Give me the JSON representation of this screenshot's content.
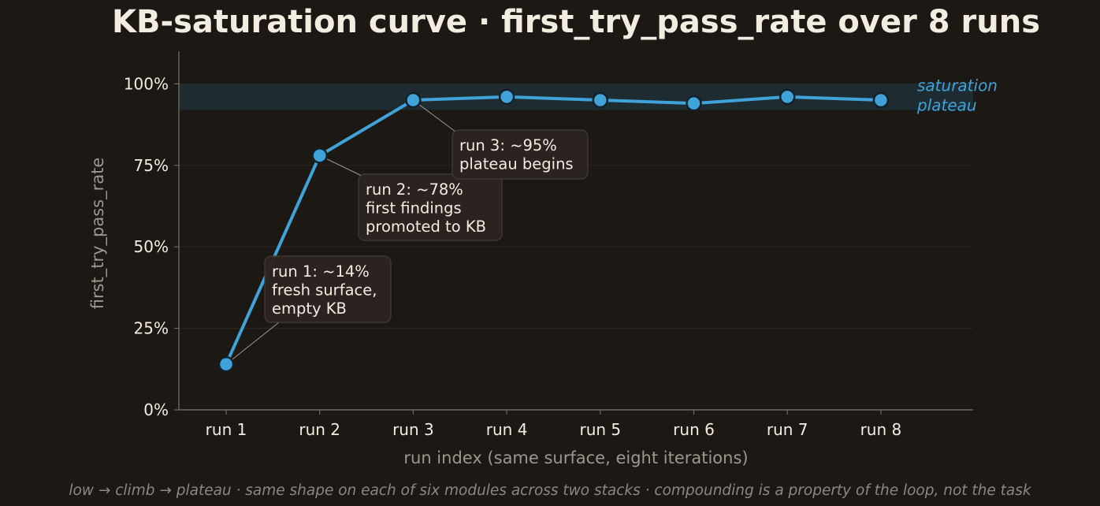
{
  "chart_data": {
    "type": "line",
    "title": "KB-saturation curve · first_try_pass_rate over 8 runs",
    "xlabel": "run index (same surface, eight iterations)",
    "ylabel": "first_try_pass_rate",
    "categories": [
      "run 1",
      "run 2",
      "run 3",
      "run 4",
      "run 5",
      "run 6",
      "run 7",
      "run 8"
    ],
    "series": [
      {
        "values": [
          14,
          78,
          95,
          96,
          95,
          94,
          96,
          95
        ]
      }
    ],
    "ylim": [
      0,
      110
    ],
    "y_ticks": [
      0,
      25,
      50,
      75,
      100
    ],
    "y_tick_labels": [
      "0%",
      "25%",
      "50%",
      "75%",
      "100%"
    ],
    "grid": "horizontal",
    "band": {
      "from": 92,
      "to": 100,
      "label_lines": [
        "saturation",
        "plateau"
      ]
    },
    "annotations": [
      {
        "index": 0,
        "lines": [
          "run 1: ~14%",
          "fresh surface,",
          "empty KB"
        ]
      },
      {
        "index": 1,
        "lines": [
          "run 2: ~78%",
          "first findings",
          "promoted to KB"
        ]
      },
      {
        "index": 2,
        "lines": [
          "run 3: ~95%",
          "plateau begins"
        ]
      }
    ],
    "footer": "low → climb → plateau · same shape on each of six modules across two stacks · compounding is a property of the loop, not the task"
  },
  "colors": {
    "background": "#1c1814",
    "line": "#3fa3d9",
    "marker_edge": "#12202a",
    "band": "#1f2d33",
    "band_label": "#3fa3d9",
    "text": "#f3ece0",
    "muted_text": "#9d978d",
    "grid": "#2c2620",
    "annotation_box": "#2b2420",
    "annotation_border": "#4a3e35"
  }
}
